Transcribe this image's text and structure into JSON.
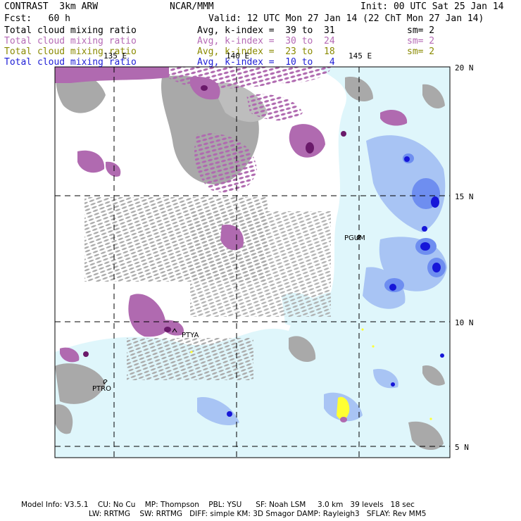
{
  "header": {
    "model_name": "CONTRAST  3km ARW",
    "institution": "NCAR/MMM",
    "init": "Init: 00 UTC Sat 25 Jan 14",
    "fcst_label": "Fcst:   60 h",
    "valid": "Valid: 12 UTC Mon 27 Jan 14 (22 ChT Mon 27 Jan 14)"
  },
  "fields": [
    {
      "name": "Total cloud mixing ratio",
      "kindex": "Avg, k-index =  39 to  31",
      "sm": "sm= 2",
      "color": "#000000"
    },
    {
      "name": "Total cloud mixing ratio",
      "kindex": "Avg, k-index =  30 to  24",
      "sm": "sm= 2",
      "color": "#b56ab5"
    },
    {
      "name": "Total cloud mixing ratio",
      "kindex": "Avg, k-index =  23 to  18",
      "sm": "sm= 2",
      "color": "#8a8a00"
    },
    {
      "name": "Total cloud mixing ratio",
      "kindex": "Avg, k-index =  10 to   4",
      "sm": "",
      "color": "#1d1dd6"
    }
  ],
  "map": {
    "lon_labels": [
      "135 E",
      "140 E",
      "145 E"
    ],
    "lat_labels": [
      "20 N",
      "15 N",
      "10 N",
      "5 N"
    ],
    "stations": [
      "PGUM",
      "PTYA",
      "PTRO"
    ],
    "colors": {
      "gray_cloud": "#a9a9a9",
      "purple_cloud": "#b06ab0",
      "dark_purple": "#6a1a6a",
      "light_cyan": "#dff6fb",
      "light_blue": "#a8c4f4",
      "mid_blue": "#6e8ef0",
      "dark_blue": "#1616d8",
      "yellow": "#ffff33"
    }
  },
  "footer": {
    "line1": "Model Info: V3.5.1    CU: No Cu    MP: Thompson    PBL: YSU      SF: Noah LSM     3.0 km   39 levels   18 sec",
    "line2": "LW: RRTMG    SW: RRTMG   DIFF: simple KM: 3D Smagor DAMP: Rayleigh3   SFLAY: Rev MM5"
  }
}
